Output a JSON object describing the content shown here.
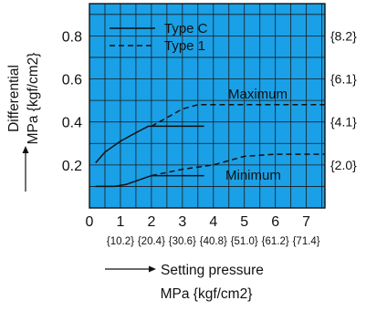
{
  "chart_data": {
    "type": "line",
    "xlabel": "Setting pressure",
    "xunit": "MPa {kgf/cm2}",
    "ylabel": "Differential",
    "yunit": "MPa {kgf/cm2}",
    "xlim": [
      0,
      7.6
    ],
    "ylim": [
      0,
      0.95
    ],
    "x_ticks": [
      "0",
      "1",
      "2",
      "3",
      "4",
      "5",
      "6",
      "7"
    ],
    "x_secondary_ticks": [
      "{10.2}",
      "{20.4}",
      "{30.6}",
      "{40.8}",
      "{51.0}",
      "{61.2}",
      "{71.4}"
    ],
    "y_ticks": [
      "0.2",
      "0.4",
      "0.6",
      "0.8"
    ],
    "y_secondary_ticks": [
      "{2.0}",
      "{4.1}",
      "{6.1}",
      "{8.2}"
    ],
    "grid": true,
    "background_color": "#1aa0e6",
    "legend": {
      "placement": "top-left",
      "entries": [
        "Type C",
        "Type 1"
      ]
    },
    "annotations": [
      "Maximum",
      "Minimum"
    ],
    "series": [
      {
        "name": "Type C",
        "group": "Maximum",
        "style": "solid",
        "x": [
          0.2,
          0.5,
          1.0,
          1.5,
          1.9,
          2.2,
          3.7
        ],
        "y": [
          0.21,
          0.26,
          0.31,
          0.35,
          0.38,
          0.38,
          0.38
        ]
      },
      {
        "name": "Type 1",
        "group": "Maximum",
        "style": "dashed",
        "x": [
          2.0,
          2.5,
          3.0,
          3.5,
          5.0,
          6.0,
          7.6
        ],
        "y": [
          0.38,
          0.42,
          0.46,
          0.48,
          0.48,
          0.48,
          0.48
        ]
      },
      {
        "name": "Type C",
        "group": "Minimum",
        "style": "solid",
        "x": [
          0.2,
          0.8,
          1.2,
          1.6,
          2.0,
          2.4,
          3.7
        ],
        "y": [
          0.1,
          0.1,
          0.11,
          0.13,
          0.15,
          0.15,
          0.15
        ]
      },
      {
        "name": "Type 1",
        "group": "Minimum",
        "style": "dashed",
        "x": [
          2.0,
          3.0,
          4.0,
          5.0,
          6.0,
          7.6
        ],
        "y": [
          0.15,
          0.18,
          0.2,
          0.24,
          0.25,
          0.25
        ]
      }
    ]
  }
}
